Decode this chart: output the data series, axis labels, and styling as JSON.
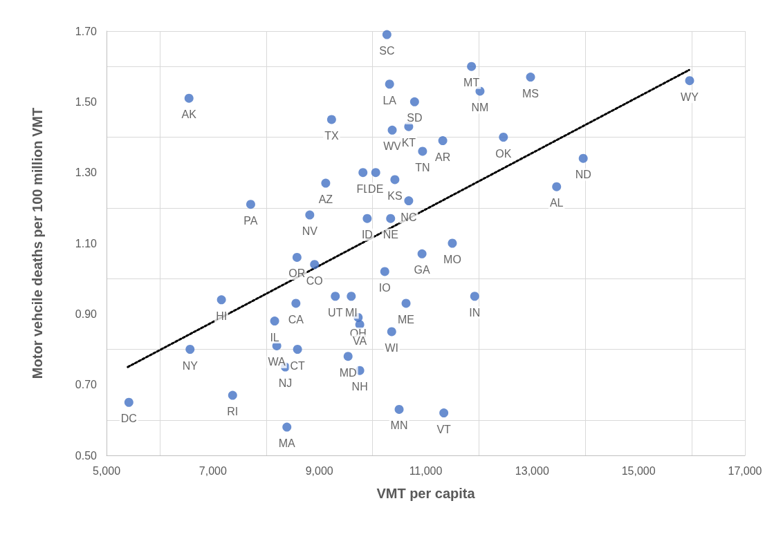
{
  "chart_data": {
    "type": "scatter",
    "xlabel": "VMT per capita",
    "ylabel": "Motor vehcile deaths per 100 million VMT",
    "xlim": [
      5000,
      17000
    ],
    "ylim": [
      0.5,
      1.7
    ],
    "xticks": [
      {
        "value": 5000,
        "label": "5,000"
      },
      {
        "value": 7000,
        "label": "7,000"
      },
      {
        "value": 9000,
        "label": "9,000"
      },
      {
        "value": 11000,
        "label": "11,000"
      },
      {
        "value": 13000,
        "label": "13,000"
      },
      {
        "value": 15000,
        "label": "15,000"
      },
      {
        "value": 17000,
        "label": "17,000"
      }
    ],
    "yticks": [
      {
        "value": 0.5,
        "label": "0.50"
      },
      {
        "value": 0.7,
        "label": "0.70"
      },
      {
        "value": 0.9,
        "label": "0.90"
      },
      {
        "value": 1.1,
        "label": "1.10"
      },
      {
        "value": 1.3,
        "label": "1.30"
      },
      {
        "value": 1.5,
        "label": "1.50"
      },
      {
        "value": 1.7,
        "label": "1.70"
      }
    ],
    "grid": true,
    "series": [
      {
        "color": "#4472c4",
        "marker": "circle",
        "x": [
          5420,
          6550,
          6570,
          7160,
          7370,
          7710,
          8160,
          8200,
          8360,
          8390,
          8560,
          8580,
          8590,
          8820,
          8910,
          9120,
          9230,
          9300,
          9600,
          9730,
          9760,
          9540,
          9760,
          9820,
          9900,
          10060,
          10230,
          10270,
          10320,
          10340,
          10360,
          10370,
          10420,
          10500,
          10790,
          10630,
          10680,
          10680,
          10940,
          10930,
          11320,
          11340,
          11500,
          11860,
          11920,
          12020,
          12460,
          12970,
          13460,
          13960,
          15960
        ],
        "values": [
          0.65,
          1.51,
          0.8,
          0.94,
          0.67,
          1.21,
          0.88,
          0.81,
          0.75,
          0.58,
          0.93,
          1.06,
          0.8,
          1.18,
          1.04,
          1.27,
          1.45,
          0.95,
          0.95,
          0.89,
          0.87,
          0.78,
          0.74,
          1.3,
          1.17,
          1.3,
          1.02,
          1.69,
          1.55,
          1.17,
          0.85,
          1.42,
          1.28,
          0.63,
          1.5,
          0.93,
          1.43,
          1.22,
          1.36,
          1.07,
          1.39,
          0.62,
          1.1,
          1.6,
          0.95,
          1.53,
          1.4,
          1.57,
          1.26,
          1.34,
          1.56
        ],
        "value_labels": [
          "DC",
          "AK",
          "NY",
          "HI",
          "RI",
          "PA",
          "IL",
          "WA",
          "NJ",
          "MA",
          "CA",
          "OR",
          "CT",
          "NV",
          "CO",
          "AZ",
          "TX",
          "UT",
          "MI",
          "OH",
          "VA",
          "MD",
          "NH",
          "FL",
          "ID",
          "DE",
          "IO",
          "SC",
          "LA",
          "NE",
          "WI",
          "WV",
          "KS",
          "MN",
          "SD",
          "ME",
          "KT",
          "NC",
          "TN",
          "GA",
          "AR",
          "VT",
          "MO",
          "MT",
          "IN",
          "NM",
          "OK",
          "MS",
          "AL",
          "ND",
          "WY"
        ]
      },
      {
        "type": "line",
        "color": "#000000",
        "marker": "none",
        "line_style": "dotted",
        "x": [
          5400,
          15950
        ],
        "values": [
          0.75,
          1.59
        ]
      }
    ]
  }
}
